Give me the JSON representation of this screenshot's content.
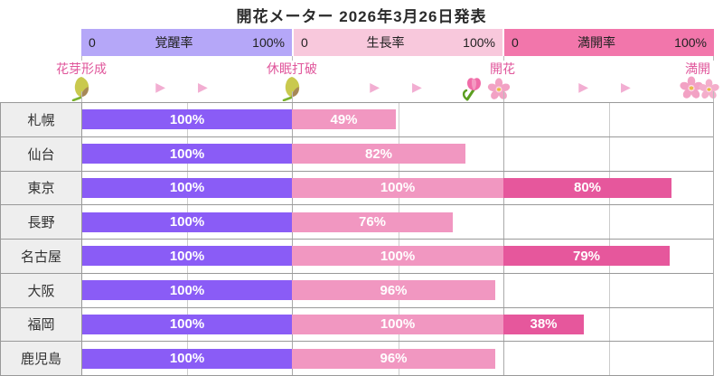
{
  "title": "開花メーター 2026年3月26日発表",
  "glyphs": {
    "arrow": "▶ ▶"
  },
  "headers": [
    {
      "min": "0",
      "label": "覚醒率",
      "max": "100%",
      "bg_color": "#b5a7f8"
    },
    {
      "min": "0",
      "label": "生長率",
      "max": "100%",
      "bg_color": "#f8c8dc"
    },
    {
      "min": "0",
      "label": "満開率",
      "max": "100%",
      "bg_color": "#f276ab"
    }
  ],
  "stages": [
    {
      "label": "花芽形成",
      "icon": "bud-icon"
    },
    {
      "label": "休眠打破",
      "icon": "bud-icon"
    },
    {
      "label": "開花",
      "icon": "tulip-and-blossom-icon"
    },
    {
      "label": "満開",
      "icon": "double-blossom-icon"
    }
  ],
  "chart_data": {
    "type": "bar",
    "title": "開花メーター 2026年3月26日発表",
    "orientation": "horizontal",
    "unit": "%",
    "segment_range": [
      0,
      100
    ],
    "grid": true,
    "legend_position": "top",
    "categories": [
      "札幌",
      "仙台",
      "東京",
      "長野",
      "名古屋",
      "大阪",
      "福岡",
      "鹿児島"
    ],
    "series": [
      {
        "name": "覚醒率",
        "color": "#8a5cf6",
        "values": [
          100,
          100,
          100,
          100,
          100,
          100,
          100,
          100
        ]
      },
      {
        "name": "生長率",
        "color": "#f197c1",
        "values": [
          49,
          82,
          100,
          76,
          100,
          96,
          100,
          96
        ]
      },
      {
        "name": "満開率",
        "color": "#e6579c",
        "values": [
          null,
          null,
          80,
          null,
          79,
          null,
          38,
          null
        ]
      }
    ]
  }
}
